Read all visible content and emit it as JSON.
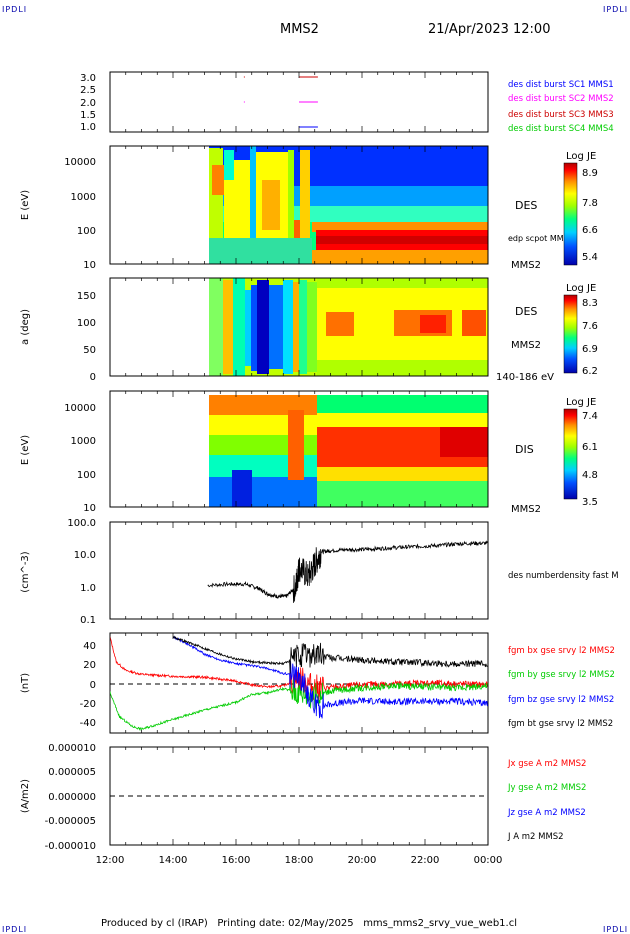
{
  "corner_left": "IPDLI",
  "corner_right": "IPDLI",
  "header": {
    "spacecraft": "MMS2",
    "datetime": "21/Apr/2023 12:00"
  },
  "footer": "Produced by cl (IRAP)   Printing date: 02/May/2025   mms_mms2_srvy_vue_web1.cl",
  "x_ticks": [
    "12:00",
    "14:00",
    "16:00",
    "18:00",
    "20:00",
    "22:00",
    "00:00"
  ],
  "colors": {
    "mms1": "#0000ff",
    "mms2": "#ff00ff",
    "mms3": "#ff0000",
    "mms4": "#00cc00"
  },
  "chart_data": [
    {
      "type": "scatter",
      "panel": "burst",
      "ylim": [
        0.8,
        3.2
      ],
      "ytick_labels": [
        "3.0",
        "2.5",
        "2.0",
        "1.5",
        "1.0"
      ],
      "series": [
        {
          "name": "des dist burst SC1 MMS1",
          "color": "#0000ff",
          "segments": [
            [
              18.0,
              18.6,
              1.0
            ]
          ]
        },
        {
          "name": "des dist burst SC2 MMS2",
          "color": "#ff00ff",
          "segments": [
            [
              16.25,
              16.28,
              2.0
            ],
            [
              18.0,
              18.6,
              2.0
            ]
          ]
        },
        {
          "name": "des dist burst SC3 MMS3",
          "color": "#cc0000",
          "segments": [
            [
              16.25,
              16.28,
              3.0
            ],
            [
              18.0,
              18.6,
              3.0
            ]
          ]
        },
        {
          "name": "des dist burst SC4 MMS4",
          "color": "#00cc00",
          "segments": []
        }
      ]
    },
    {
      "type": "heatmap",
      "panel": "des_energy",
      "ylabel": "E (eV)",
      "ytick_labels": [
        "10000",
        "1000",
        "100",
        "10"
      ],
      "labels": [
        "DES",
        "edp scpot MMS2",
        "MMS2"
      ],
      "colorbar": {
        "title": "Log JE",
        "ticks": [
          "8.9",
          "7.8",
          "6.6",
          "5.4"
        ]
      },
      "data_start_hour": 15.1
    },
    {
      "type": "heatmap",
      "panel": "des_pitch",
      "ylabel": "a (deg)",
      "ytick_labels": [
        "150",
        "100",
        "50",
        "0"
      ],
      "labels": [
        "DES",
        "MMS2",
        "140-186 eV"
      ],
      "colorbar": {
        "title": "Log JE",
        "ticks": [
          "8.3",
          "7.6",
          "6.9",
          "6.2"
        ]
      },
      "data_start_hour": 15.1
    },
    {
      "type": "heatmap",
      "panel": "dis_energy",
      "ylabel": "E (eV)",
      "ytick_labels": [
        "10000",
        "1000",
        "100",
        "10"
      ],
      "labels": [
        "DIS",
        "MMS2"
      ],
      "colorbar": {
        "title": "Log JE",
        "ticks": [
          "7.4",
          "6.1",
          "4.8",
          "3.5"
        ]
      },
      "data_start_hour": 15.1
    },
    {
      "type": "line",
      "panel": "density",
      "ylabel": "(cm^-3)",
      "ytick_labels": [
        "100.0",
        "10.0",
        "1.0",
        "0.1"
      ],
      "yscale": "log",
      "ylim": [
        0.1,
        100
      ],
      "series": [
        {
          "name": "des numberdensity fast M",
          "color": "#000000",
          "x": [
            15.1,
            15.8,
            16.3,
            16.7,
            17.0,
            17.3,
            17.6,
            17.9,
            18.0,
            18.3,
            18.5,
            18.7,
            19.0,
            19.5,
            20.0,
            20.5,
            21.0,
            21.5,
            22.0,
            22.5,
            23.0,
            23.5,
            24.0
          ],
          "y": [
            1.1,
            1.2,
            1.2,
            0.9,
            0.6,
            0.5,
            0.5,
            1.0,
            4.0,
            2.0,
            5.0,
            12.0,
            13.0,
            14.0,
            14.0,
            15.0,
            16.0,
            17.0,
            18.0,
            19.0,
            21.0,
            22.0,
            22.0
          ]
        }
      ]
    },
    {
      "type": "line",
      "panel": "fgm",
      "ylabel": "(nT)",
      "ytick_labels": [
        "40",
        "20",
        "0",
        "-20",
        "-40"
      ],
      "ylim": [
        -52,
        52
      ],
      "series": [
        {
          "name": "fgm bx gse srvy l2 MMS2",
          "color": "#ff0000",
          "x": [
            12.0,
            12.2,
            12.5,
            13.0,
            14.0,
            15.0,
            16.0,
            16.5,
            17.0,
            17.5,
            18.0,
            18.5,
            19.0,
            20.0,
            21.0,
            22.0,
            23.0,
            24.0
          ],
          "y": [
            48,
            22,
            13,
            9,
            7,
            6,
            2,
            -2,
            -4,
            -3,
            5,
            -5,
            -5,
            -2,
            -1,
            0,
            -1,
            -2
          ]
        },
        {
          "name": "fgm by gse srvy l2 MMS2",
          "color": "#00cc00",
          "x": [
            12.0,
            12.3,
            12.7,
            13.0,
            14.0,
            15.0,
            16.0,
            16.5,
            17.0,
            17.5,
            18.0,
            18.5,
            19.0,
            20.0,
            21.0,
            22.0,
            23.0,
            24.0
          ],
          "y": [
            -10,
            -35,
            -45,
            -48,
            -38,
            -28,
            -20,
            -12,
            -10,
            -6,
            -10,
            -14,
            -8,
            -5,
            -3,
            -4,
            -5,
            -3
          ]
        },
        {
          "name": "fgm bz gse srvy l2 MMS2",
          "color": "#0000ff",
          "x": [
            14.0,
            14.5,
            15.0,
            15.5,
            16.0,
            16.5,
            17.0,
            17.5,
            18.0,
            18.5,
            19.0,
            20.0,
            21.0,
            22.0,
            23.0,
            24.0
          ],
          "y": [
            48,
            40,
            30,
            24,
            20,
            18,
            15,
            10,
            8,
            -25,
            -22,
            -18,
            -20,
            -19,
            -19,
            -21
          ]
        },
        {
          "name": "fgm bt gse srvy l2 MMS2",
          "color": "#000000",
          "x": [
            14.0,
            14.5,
            15.0,
            15.5,
            16.0,
            16.5,
            17.0,
            17.5,
            18.0,
            18.5,
            19.0,
            20.0,
            21.0,
            22.0,
            23.0,
            24.0
          ],
          "y": [
            48,
            42,
            36,
            30,
            25,
            22,
            21,
            20,
            28,
            30,
            26,
            24,
            22,
            21,
            20,
            20
          ]
        }
      ]
    },
    {
      "type": "line",
      "panel": "current",
      "ylabel": "(A/m2)",
      "ytick_labels": [
        "0.000010",
        "0.000005",
        "0.000000",
        "-0.000005",
        "-0.000010"
      ],
      "ylim": [
        -1e-05,
        1e-05
      ],
      "series": [
        {
          "name": "Jx gse A m2 MMS2",
          "color": "#ff0000",
          "x": [],
          "y": []
        },
        {
          "name": "Jy gse A m2 MMS2",
          "color": "#00cc00",
          "x": [],
          "y": []
        },
        {
          "name": "Jz gse A m2 MMS2",
          "color": "#0000ff",
          "x": [],
          "y": []
        },
        {
          "name": "J A m2 MMS2",
          "color": "#000000",
          "x": [],
          "y": []
        }
      ]
    }
  ]
}
